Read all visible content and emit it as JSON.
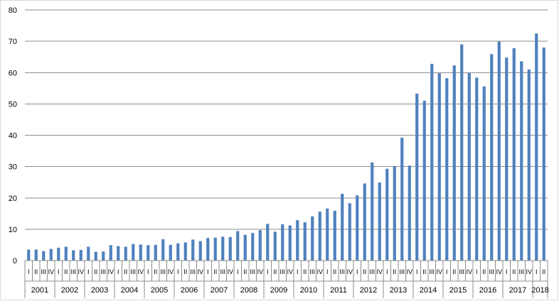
{
  "chart_data": {
    "type": "bar",
    "title": "",
    "xlabel": "",
    "ylabel": "",
    "ylim": [
      0,
      80
    ],
    "yticks": [
      "0",
      "10",
      "20",
      "30",
      "40",
      "50",
      "60",
      "70",
      "80"
    ],
    "grid": true,
    "legend": "none",
    "bar_color": "#4f81bd",
    "grid_color": "#8c8c8c",
    "quarter_labels": [
      "I",
      "II",
      "III",
      "IV"
    ],
    "years": [
      "2001",
      "2002",
      "2003",
      "2004",
      "2005",
      "2006",
      "2007",
      "2008",
      "2009",
      "2010",
      "2011",
      "2012",
      "2013",
      "2014",
      "2015",
      "2016",
      "2017",
      "2018"
    ],
    "categories": [
      "2001 I",
      "2001 II",
      "2001 III",
      "2001 IV",
      "2002 I",
      "2002 II",
      "2002 III",
      "2002 IV",
      "2003 I",
      "2003 II",
      "2003 III",
      "2003 IV",
      "2004 I",
      "2004 II",
      "2004 III",
      "2004 IV",
      "2005 I",
      "2005 II",
      "2005 III",
      "2005 IV",
      "2006 I",
      "2006 II",
      "2006 III",
      "2006 IV",
      "2007 I",
      "2007 II",
      "2007 III",
      "2007 IV",
      "2008 I",
      "2008 II",
      "2008 III",
      "2008 IV",
      "2009 I",
      "2009 II",
      "2009 III",
      "2009 IV",
      "2010 I",
      "2010 II",
      "2010 III",
      "2010 IV",
      "2011 I",
      "2011 II",
      "2011 III",
      "2011 IV",
      "2012 I",
      "2012 II",
      "2012 III",
      "2012 IV",
      "2013 I",
      "2013 II",
      "2013 III",
      "2013 IV",
      "2014 I",
      "2014 II",
      "2014 III",
      "2014 IV",
      "2015 I",
      "2015 II",
      "2015 III",
      "2015 IV",
      "2016 I",
      "2016 II",
      "2016 III",
      "2016 IV",
      "2017 I",
      "2017 II",
      "2017 III",
      "2017 IV",
      "2018 I",
      "2018 II"
    ],
    "values": [
      3.5,
      3.5,
      3.0,
      3.7,
      4.1,
      4.4,
      3.3,
      3.4,
      4.4,
      2.8,
      2.9,
      4.9,
      4.6,
      4.4,
      5.3,
      5.1,
      4.9,
      5.0,
      6.8,
      5.0,
      5.5,
      5.8,
      6.7,
      6.2,
      7.2,
      7.3,
      7.6,
      7.5,
      9.4,
      8.2,
      8.8,
      9.7,
      11.7,
      9.2,
      11.6,
      11.2,
      12.9,
      12.2,
      14.1,
      15.6,
      16.6,
      15.9,
      21.3,
      18.3,
      20.8,
      24.6,
      31.3,
      24.9,
      29.3,
      30.1,
      39.2,
      30.3,
      53.3,
      51.0,
      62.8,
      59.8,
      58.2,
      62.3,
      69.0,
      59.9,
      58.4,
      55.6,
      65.9,
      69.9,
      64.8,
      67.8,
      63.6,
      61.0,
      72.5,
      68.0
    ]
  }
}
